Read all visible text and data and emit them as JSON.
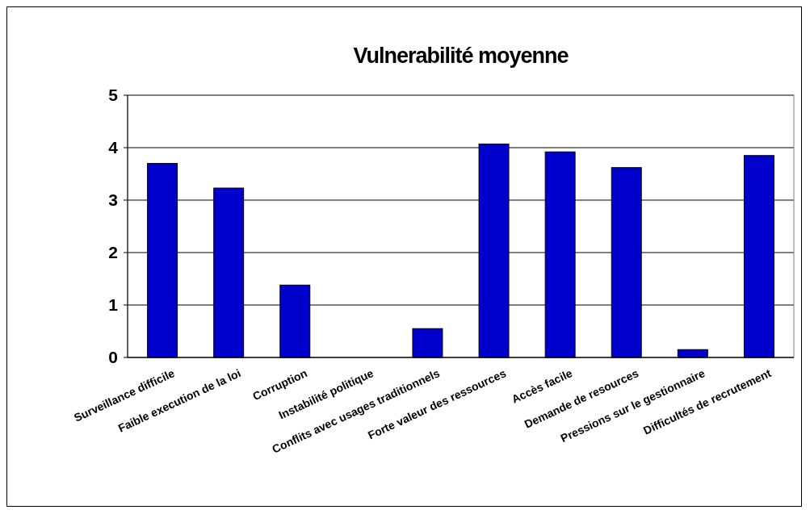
{
  "chart_data": {
    "type": "bar",
    "title": "Vulnerabilité moyenne",
    "categories": [
      "Surveillance difficile",
      "Faible execution de la loi",
      "Corruption",
      "Instabilité politique",
      "Conflits avec usages traditionnels",
      "Forte valeur des ressources",
      "Accès facile",
      "Demande de resources",
      "Pressions sur le gestionnaire",
      "Difficultés de recrutement"
    ],
    "values": [
      3.7,
      3.23,
      1.38,
      0,
      0.55,
      4.07,
      3.92,
      3.62,
      0.15,
      3.85
    ],
    "color": "#0000cc",
    "ylim": [
      0,
      5
    ],
    "yticks": [
      0,
      1,
      2,
      3,
      4,
      5
    ],
    "grid": "y"
  }
}
